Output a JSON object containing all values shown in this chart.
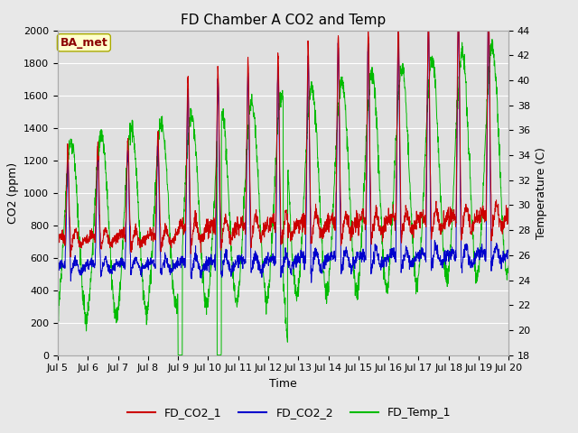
{
  "title": "FD Chamber A CO2 and Temp",
  "xlabel": "Time",
  "ylabel_left": "CO2 (ppm)",
  "ylabel_right": "Temperature (C)",
  "co2_ylim": [
    0,
    2000
  ],
  "temp_ylim": [
    18,
    44
  ],
  "x_tick_labels": [
    "Jul 5",
    "Jul 6",
    "Jul 7",
    "Jul 8",
    "Jul 9",
    "Jul 10",
    "Jul 11",
    "Jul 12",
    "Jul 13",
    "Jul 14",
    "Jul 15",
    "Jul 16",
    "Jul 17",
    "Jul 18",
    "Jul 19",
    "Jul 20"
  ],
  "color_co2_1": "#cc0000",
  "color_co2_2": "#0000cc",
  "color_temp": "#00bb00",
  "legend_label_box": "BA_met",
  "legend_labels": [
    "FD_CO2_1",
    "FD_CO2_2",
    "FD_Temp_1"
  ],
  "fig_bg_color": "#e8e8e8",
  "plot_bg_color": "#e0e0e0",
  "grid_color": "#ffffff",
  "title_fontsize": 11,
  "axis_label_fontsize": 9,
  "tick_fontsize": 8,
  "legend_fontsize": 9
}
